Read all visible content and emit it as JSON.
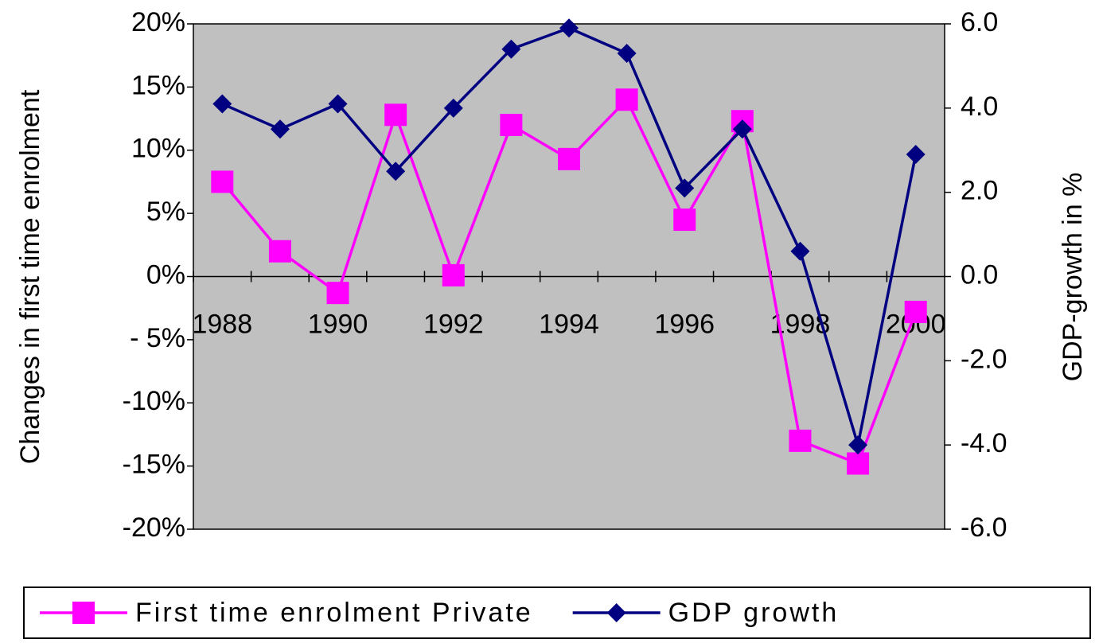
{
  "chart_data": {
    "type": "line",
    "y_label": "Changes in first time enrolment",
    "y2_label": "GDP-growth in %",
    "categories": [
      "1988",
      null,
      "1990",
      null,
      "1992",
      null,
      "1994",
      null,
      "1996",
      null,
      "1998",
      null,
      "2000"
    ],
    "series": [
      {
        "name": "First time enrolment Private",
        "color": "#ff00ff",
        "marker": "square",
        "values": [
          7.5,
          2,
          -1.3,
          12.8,
          0.1,
          12,
          9.3,
          14,
          4.5,
          12.3,
          -13,
          -14.8,
          -2.8
        ]
      },
      {
        "name": "GDP growth",
        "color": "#000080",
        "marker": "diamond",
        "axis": "y2",
        "values": [
          4.1,
          3.5,
          4.1,
          2.5,
          4.0,
          5.4,
          5.9,
          5.3,
          2.1,
          3.5,
          0.6,
          -4.0,
          2.9
        ]
      }
    ],
    "ylim": [
      -20,
      20
    ],
    "yticks": [
      {
        "value": -20,
        "label": "-20%"
      },
      {
        "value": -15,
        "label": "-15%"
      },
      {
        "value": -10,
        "label": "-10%"
      },
      {
        "value": -5,
        "label": "- 5%"
      },
      {
        "value": 0,
        "label": "0%"
      },
      {
        "value": 5,
        "label": "5%"
      },
      {
        "value": 10,
        "label": "10%"
      },
      {
        "value": 15,
        "label": "15%"
      },
      {
        "value": 20,
        "label": "20%"
      }
    ],
    "y2lim": [
      -6,
      6
    ],
    "y2ticks": [
      {
        "value": -6,
        "label": "-6.0"
      },
      {
        "value": -4,
        "label": "-4.0"
      },
      {
        "value": -2,
        "label": "-2.0"
      },
      {
        "value": 0,
        "label": "0.0"
      },
      {
        "value": 2,
        "label": "2.0"
      },
      {
        "value": 4,
        "label": "4.0"
      },
      {
        "value": 6,
        "label": "6.0"
      }
    ],
    "plot_background": "#c0c0c0",
    "legend": "bottom"
  }
}
